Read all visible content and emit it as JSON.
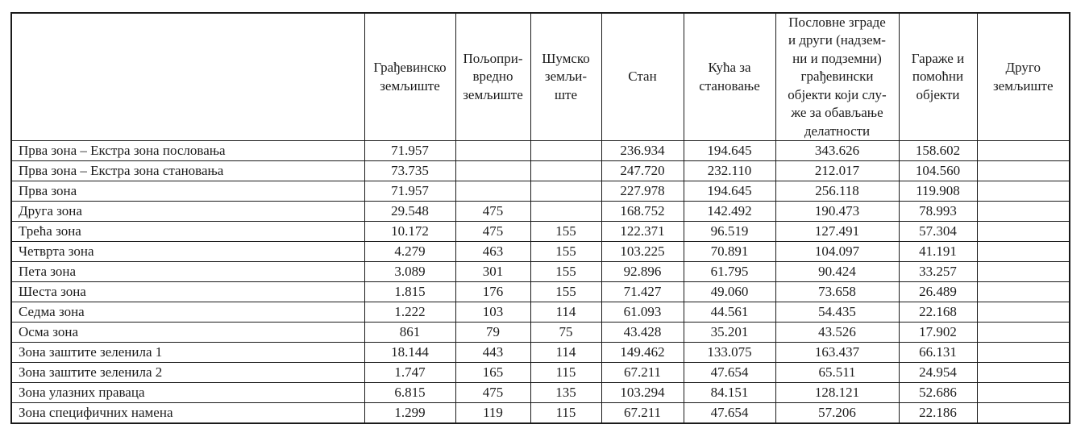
{
  "document": {
    "background_color": "#ffffff",
    "text_color": "#1c1c1c",
    "border_color": "#1a1a1a"
  },
  "table": {
    "columns": [
      {
        "id": "zone",
        "label": ""
      },
      {
        "id": "construction-land",
        "label": "Грађевинско\nземљиште"
      },
      {
        "id": "agricultural-land",
        "label": "Пољопри-\nвредно\nземљиште"
      },
      {
        "id": "forest-land",
        "label": "Шумско\nземљи-\nште"
      },
      {
        "id": "apartment",
        "label": "Стан"
      },
      {
        "id": "residential-house",
        "label": "Кућа за\nстановање"
      },
      {
        "id": "business-buildings",
        "label": "Пословне зграде\nи други (надзем-\nни и подземни)\nграђевински\nобјекти који слу-\nже за обављање\nделатности"
      },
      {
        "id": "garages-auxiliary",
        "label": "Гараже и\nпомоћни\nобјекти"
      },
      {
        "id": "other-land",
        "label": "Друго\nземљиште"
      }
    ],
    "rows": [
      {
        "zone": "Прва зона – Екстра зона пословања",
        "values": [
          "71.957",
          "",
          "",
          "236.934",
          "194.645",
          "343.626",
          "158.602",
          ""
        ]
      },
      {
        "zone": "Прва зона – Екстра зона становања",
        "values": [
          "73.735",
          "",
          "",
          "247.720",
          "232.110",
          "212.017",
          "104.560",
          ""
        ]
      },
      {
        "zone": "Прва зона",
        "values": [
          "71.957",
          "",
          "",
          "227.978",
          "194.645",
          "256.118",
          "119.908",
          ""
        ]
      },
      {
        "zone": "Друга зона",
        "values": [
          "29.548",
          "475",
          "",
          "168.752",
          "142.492",
          "190.473",
          "78.993",
          ""
        ]
      },
      {
        "zone": "Трећа зона",
        "values": [
          "10.172",
          "475",
          "155",
          "122.371",
          "96.519",
          "127.491",
          "57.304",
          ""
        ]
      },
      {
        "zone": "Четврта зона",
        "values": [
          "4.279",
          "463",
          "155",
          "103.225",
          "70.891",
          "104.097",
          "41.191",
          ""
        ]
      },
      {
        "zone": "Пета зона",
        "values": [
          "3.089",
          "301",
          "155",
          "92.896",
          "61.795",
          "90.424",
          "33.257",
          ""
        ]
      },
      {
        "zone": "Шеста зона",
        "values": [
          "1.815",
          "176",
          "155",
          "71.427",
          "49.060",
          "73.658",
          "26.489",
          ""
        ]
      },
      {
        "zone": "Седма зона",
        "values": [
          "1.222",
          "103",
          "114",
          "61.093",
          "44.561",
          "54.435",
          "22.168",
          ""
        ]
      },
      {
        "zone": "Осма зона",
        "values": [
          "861",
          "79",
          "75",
          "43.428",
          "35.201",
          "43.526",
          "17.902",
          ""
        ]
      },
      {
        "zone": "Зона заштите зеленила 1",
        "values": [
          "18.144",
          "443",
          "114",
          "149.462",
          "133.075",
          "163.437",
          "66.131",
          ""
        ]
      },
      {
        "zone": "Зона заштите зеленила 2",
        "values": [
          "1.747",
          "165",
          "115",
          "67.211",
          "47.654",
          "65.511",
          "24.954",
          ""
        ]
      },
      {
        "zone": "Зона улазних праваца",
        "values": [
          "6.815",
          "475",
          "135",
          "103.294",
          "84.151",
          "128.121",
          "52.686",
          ""
        ]
      },
      {
        "zone": "Зона специфичних намена",
        "values": [
          "1.299",
          "119",
          "115",
          "67.211",
          "47.654",
          "57.206",
          "22.186",
          ""
        ]
      }
    ]
  }
}
